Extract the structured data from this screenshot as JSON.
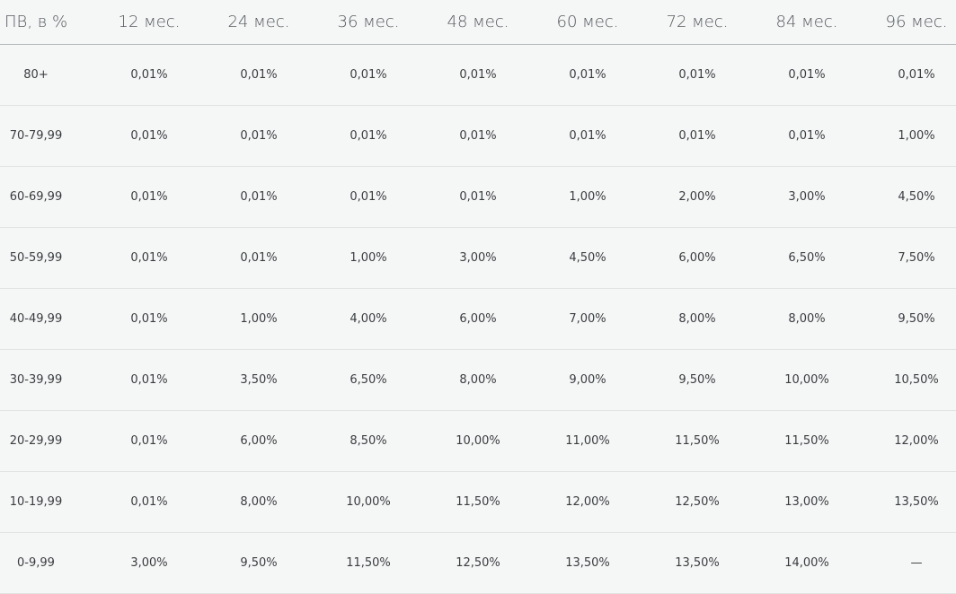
{
  "table": {
    "headers": [
      "ПВ, в %",
      "12 мес.",
      "24 мес.",
      "36 мес.",
      "48 мес.",
      "60 мес.",
      "72 мес.",
      "84 мес.",
      "96 мес."
    ],
    "rows": [
      [
        "80+",
        "0,01%",
        "0,01%",
        "0,01%",
        "0,01%",
        "0,01%",
        "0,01%",
        "0,01%",
        "0,01%"
      ],
      [
        "70-79,99",
        "0,01%",
        "0,01%",
        "0,01%",
        "0,01%",
        "0,01%",
        "0,01%",
        "0,01%",
        "1,00%"
      ],
      [
        "60-69,99",
        "0,01%",
        "0,01%",
        "0,01%",
        "0,01%",
        "1,00%",
        "2,00%",
        "3,00%",
        "4,50%"
      ],
      [
        "50-59,99",
        "0,01%",
        "0,01%",
        "1,00%",
        "3,00%",
        "4,50%",
        "6,00%",
        "6,50%",
        "7,50%"
      ],
      [
        "40-49,99",
        "0,01%",
        "1,00%",
        "4,00%",
        "6,00%",
        "7,00%",
        "8,00%",
        "8,00%",
        "9,50%"
      ],
      [
        "30-39,99",
        "0,01%",
        "3,50%",
        "6,50%",
        "8,00%",
        "9,00%",
        "9,50%",
        "10,00%",
        "10,50%"
      ],
      [
        "20-29,99",
        "0,01%",
        "6,00%",
        "8,50%",
        "10,00%",
        "11,00%",
        "11,50%",
        "11,50%",
        "12,00%"
      ],
      [
        "10-19,99",
        "0,01%",
        "8,00%",
        "10,00%",
        "11,50%",
        "12,00%",
        "12,50%",
        "13,00%",
        "13,50%"
      ],
      [
        "0-9,99",
        "3,00%",
        "9,50%",
        "11,50%",
        "12,50%",
        "13,50%",
        "13,50%",
        "14,00%",
        "—"
      ]
    ]
  }
}
